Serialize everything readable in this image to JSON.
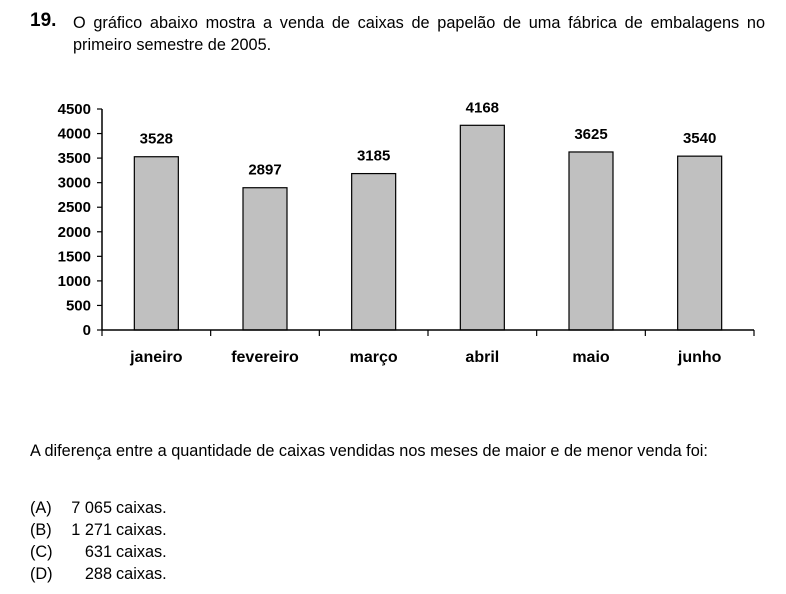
{
  "question": {
    "number": "19.",
    "text": "O gráfico abaixo mostra a venda de caixas de papelão de uma fábrica de embalagens no primeiro semestre de 2005.",
    "prompt": "A diferença entre a quantidade de caixas vendidas nos meses de maior e de menor venda foi:",
    "options": [
      {
        "letter": "(A)",
        "value": "7 065",
        "unit": "caixas."
      },
      {
        "letter": "(B)",
        "value": "1 271",
        "unit": "caixas."
      },
      {
        "letter": "(C)",
        "value": "631",
        "unit": "caixas."
      },
      {
        "letter": "(D)",
        "value": "288",
        "unit": "caixas."
      }
    ]
  },
  "chart_data": {
    "type": "bar",
    "categories": [
      "janeiro",
      "fevereiro",
      "março",
      "abril",
      "maio",
      "junho"
    ],
    "values": [
      3528,
      2897,
      3185,
      4168,
      3625,
      3540
    ],
    "data_labels": [
      "3528",
      "2897",
      "3185",
      "4168",
      "3625",
      "3540"
    ],
    "yticks": [
      "0",
      "500",
      "1000",
      "1500",
      "2000",
      "2500",
      "3000",
      "3500",
      "4000",
      "4500"
    ],
    "ylim": [
      0,
      4500
    ],
    "grid": false,
    "bar_color": "#c0c0c0",
    "title": "",
    "xlabel": "",
    "ylabel": ""
  }
}
